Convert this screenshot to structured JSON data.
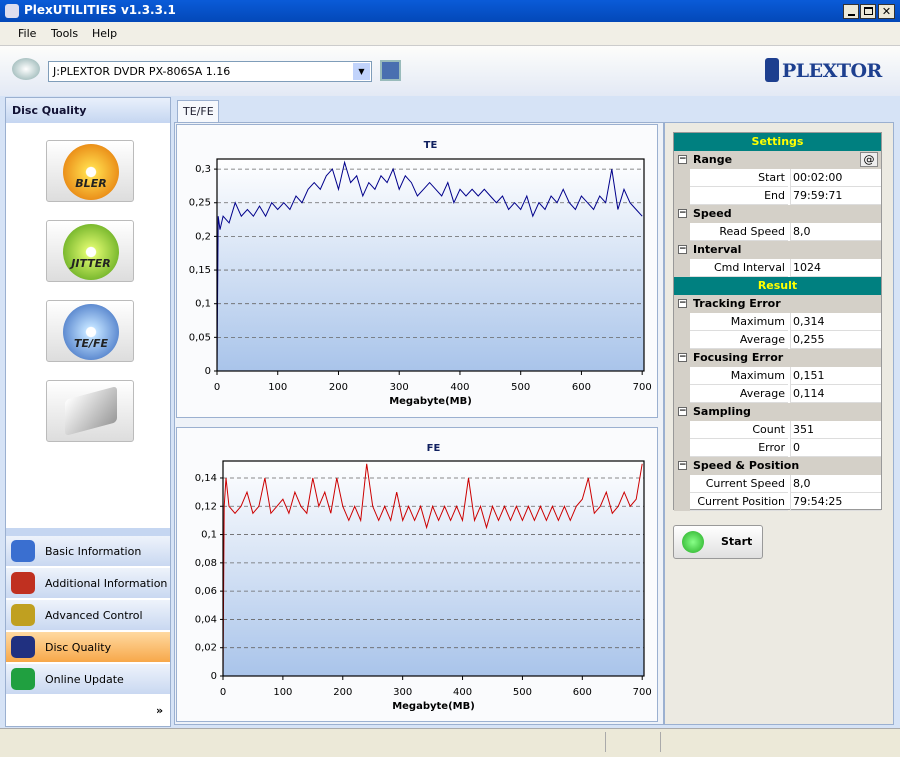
{
  "window": {
    "title": "PlexUTILITIES v1.3.3.1"
  },
  "menu": [
    "File",
    "Tools",
    "Help"
  ],
  "drive": "J:PLEXTOR DVDR   PX-806SA  1.16",
  "logo": "PLEXTOR",
  "sidebar": {
    "title": "Disc Quality",
    "buttons": [
      "BLER",
      "JITTER",
      "TE/FE"
    ],
    "nav": [
      "Basic Information",
      "Additional Information",
      "Advanced Control",
      "Disc Quality",
      "Online Update"
    ],
    "active": "Disc Quality"
  },
  "tab": "TE/FE",
  "settings": {
    "title": "Settings",
    "groups": [
      {
        "name": "Range",
        "button": "@",
        "rows": [
          {
            "label": "Start",
            "value": "00:02:00"
          },
          {
            "label": "End",
            "value": "79:59:71"
          }
        ]
      },
      {
        "name": "Speed",
        "rows": [
          {
            "label": "Read Speed",
            "value": "8,0"
          }
        ]
      },
      {
        "name": "Interval",
        "rows": [
          {
            "label": "Cmd Interval",
            "value": "1024"
          }
        ]
      }
    ]
  },
  "result": {
    "title": "Result",
    "groups": [
      {
        "name": "Tracking Error",
        "rows": [
          {
            "label": "Maximum",
            "value": "0,314"
          },
          {
            "label": "Average",
            "value": "0,255"
          }
        ]
      },
      {
        "name": "Focusing Error",
        "rows": [
          {
            "label": "Maximum",
            "value": "0,151"
          },
          {
            "label": "Average",
            "value": "0,114"
          }
        ]
      },
      {
        "name": "Sampling",
        "rows": [
          {
            "label": "Count",
            "value": "351"
          },
          {
            "label": "Error",
            "value": "0"
          }
        ]
      },
      {
        "name": "Speed & Position",
        "rows": [
          {
            "label": "Current Speed",
            "value": "8,0"
          },
          {
            "label": "Current Position",
            "value": "79:54:25"
          }
        ]
      }
    ]
  },
  "start_button": "Start",
  "chart_data": [
    {
      "type": "line",
      "title": "TE",
      "x_label": "Megabyte(MB)",
      "x": [
        0,
        2,
        5,
        10,
        20,
        30,
        40,
        50,
        60,
        70,
        80,
        90,
        100,
        110,
        120,
        130,
        140,
        150,
        160,
        170,
        180,
        190,
        200,
        210,
        220,
        230,
        240,
        250,
        260,
        270,
        280,
        290,
        300,
        310,
        320,
        330,
        340,
        350,
        360,
        370,
        380,
        390,
        400,
        410,
        420,
        430,
        440,
        450,
        460,
        470,
        480,
        490,
        500,
        510,
        520,
        530,
        540,
        550,
        560,
        570,
        580,
        590,
        600,
        610,
        620,
        630,
        640,
        650,
        660,
        670,
        680,
        690,
        700
      ],
      "series": [
        {
          "name": "TE",
          "color": "#00008b",
          "values": [
            0,
            0.23,
            0.21,
            0.23,
            0.22,
            0.25,
            0.23,
            0.24,
            0.23,
            0.245,
            0.23,
            0.25,
            0.24,
            0.25,
            0.24,
            0.26,
            0.25,
            0.27,
            0.28,
            0.27,
            0.29,
            0.3,
            0.27,
            0.31,
            0.28,
            0.29,
            0.26,
            0.28,
            0.27,
            0.29,
            0.28,
            0.3,
            0.27,
            0.29,
            0.28,
            0.26,
            0.27,
            0.28,
            0.27,
            0.26,
            0.28,
            0.25,
            0.27,
            0.26,
            0.27,
            0.26,
            0.27,
            0.26,
            0.25,
            0.26,
            0.24,
            0.25,
            0.24,
            0.26,
            0.23,
            0.25,
            0.24,
            0.26,
            0.25,
            0.27,
            0.25,
            0.24,
            0.26,
            0.25,
            0.24,
            0.26,
            0.25,
            0.3,
            0.24,
            0.27,
            0.25,
            0.24,
            0.23
          ]
        }
      ],
      "xlim": [
        0,
        703
      ],
      "xticks": [
        0,
        100,
        200,
        300,
        400,
        500,
        600,
        700
      ],
      "ylim": [
        0,
        0.315
      ],
      "yticks": [
        0,
        {
          "value": 0.05,
          "label": "0,05"
        },
        {
          "value": 0.1,
          "label": "0,1"
        },
        {
          "value": 0.15,
          "label": "0,15"
        },
        {
          "value": 0.2,
          "label": "0,2"
        },
        {
          "value": 0.25,
          "label": "0,25"
        },
        {
          "value": 0.3,
          "label": "0,3"
        }
      ],
      "grid": true
    },
    {
      "type": "line",
      "title": "FE",
      "x_label": "Megabyte(MB)",
      "x": [
        0,
        2,
        5,
        10,
        20,
        30,
        40,
        50,
        60,
        70,
        80,
        90,
        100,
        110,
        120,
        130,
        140,
        150,
        160,
        170,
        180,
        190,
        200,
        210,
        220,
        230,
        240,
        250,
        260,
        270,
        280,
        290,
        300,
        310,
        320,
        330,
        340,
        350,
        360,
        370,
        380,
        390,
        400,
        410,
        420,
        430,
        440,
        450,
        460,
        470,
        480,
        490,
        500,
        510,
        520,
        530,
        540,
        550,
        560,
        570,
        580,
        590,
        600,
        610,
        620,
        630,
        640,
        650,
        660,
        670,
        680,
        690,
        700
      ],
      "series": [
        {
          "name": "FE",
          "color": "#cc0000",
          "values": [
            0,
            0.12,
            0.14,
            0.12,
            0.115,
            0.12,
            0.13,
            0.115,
            0.12,
            0.14,
            0.115,
            0.12,
            0.125,
            0.115,
            0.13,
            0.12,
            0.115,
            0.14,
            0.12,
            0.13,
            0.115,
            0.14,
            0.12,
            0.11,
            0.12,
            0.11,
            0.15,
            0.12,
            0.11,
            0.12,
            0.11,
            0.13,
            0.11,
            0.12,
            0.11,
            0.12,
            0.105,
            0.12,
            0.11,
            0.12,
            0.11,
            0.12,
            0.11,
            0.14,
            0.11,
            0.12,
            0.105,
            0.12,
            0.11,
            0.12,
            0.11,
            0.12,
            0.11,
            0.12,
            0.11,
            0.12,
            0.11,
            0.12,
            0.11,
            0.12,
            0.11,
            0.12,
            0.125,
            0.14,
            0.115,
            0.12,
            0.13,
            0.115,
            0.12,
            0.13,
            0.12,
            0.125,
            0.15
          ]
        }
      ],
      "xlim": [
        0,
        703
      ],
      "xticks": [
        0,
        100,
        200,
        300,
        400,
        500,
        600,
        700
      ],
      "ylim": [
        0,
        0.152
      ],
      "yticks": [
        0,
        {
          "value": 0.02,
          "label": "0,02"
        },
        {
          "value": 0.04,
          "label": "0,04"
        },
        {
          "value": 0.06,
          "label": "0,06"
        },
        {
          "value": 0.08,
          "label": "0,08"
        },
        {
          "value": 0.1,
          "label": "0,1"
        },
        {
          "value": 0.12,
          "label": "0,12"
        },
        {
          "value": 0.14,
          "label": "0,14"
        }
      ],
      "grid": true
    }
  ]
}
